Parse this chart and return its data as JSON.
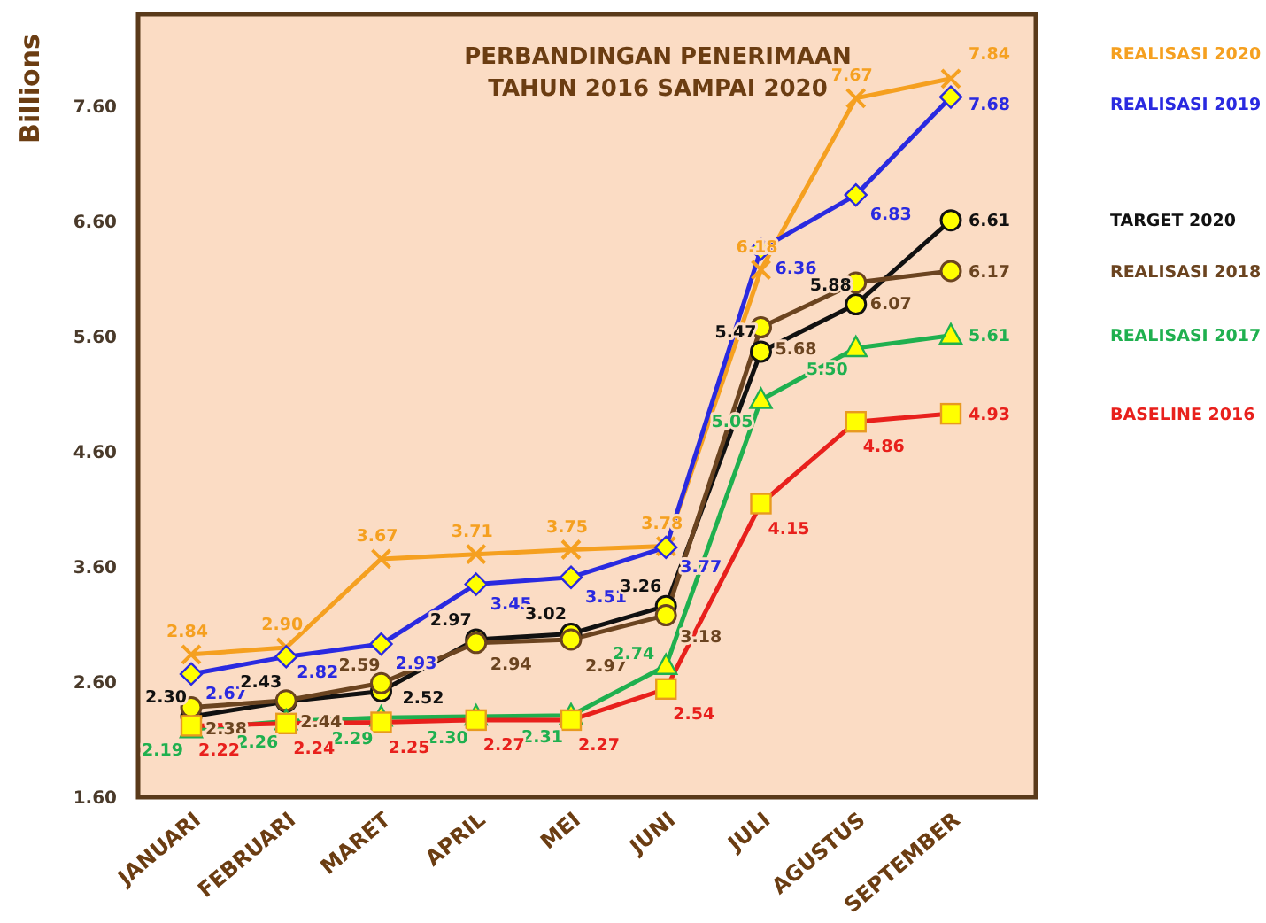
{
  "chart_data": {
    "type": "line",
    "title": "PERBANDINGAN PENERIMAAN\nTAHUN 2016 SAMPAI 2020",
    "ylabel": "Billions",
    "categories": [
      "JANUARI",
      "FEBRUARI",
      "MARET",
      "APRIL",
      "MEI",
      "JUNI",
      "JULI",
      "AGUSTUS",
      "SEPTEMBER"
    ],
    "series": [
      {
        "name": "REALISASI 2020",
        "color": "#f5a020",
        "marker": "cross",
        "values": [
          2.84,
          2.9,
          3.67,
          3.71,
          3.75,
          3.78,
          6.18,
          7.67,
          7.84
        ],
        "value_labels": [
          "2.84",
          "2.90",
          "3.67",
          "3.71",
          "3.75",
          "3.78",
          "6.18",
          "7.67",
          "7.84"
        ]
      },
      {
        "name": "REALISASI 2019",
        "color": "#2a2ae0",
        "marker": "diamond",
        "values": [
          2.67,
          2.82,
          2.93,
          3.45,
          3.51,
          3.77,
          6.36,
          6.83,
          7.68
        ],
        "value_labels": [
          "2.67",
          "2.82",
          "2.93",
          "3.45",
          "3.51",
          "3.77",
          "6.36",
          "6.83",
          "7.68"
        ]
      },
      {
        "name": "TARGET 2020",
        "color": "#111111",
        "marker": "circle",
        "values": [
          2.3,
          2.43,
          2.52,
          2.97,
          3.02,
          3.26,
          5.47,
          5.88,
          6.61
        ],
        "value_labels": [
          "2.30",
          "2.43",
          "2.52",
          "2.97",
          "3.02",
          "3.26",
          "5.47",
          "5.88",
          "6.61"
        ]
      },
      {
        "name": "REALISASI 2018",
        "color": "#6b4420",
        "marker": "circle",
        "values": [
          2.38,
          2.44,
          2.59,
          2.94,
          2.97,
          3.18,
          5.68,
          6.07,
          6.17
        ],
        "value_labels": [
          "2.38",
          "2.44",
          "2.59",
          "2.94",
          "2.97",
          "3.18",
          "5.68",
          "6.07",
          "6.17"
        ]
      },
      {
        "name": "REALISASI 2017",
        "color": "#1fb04f",
        "marker": "triangle",
        "values": [
          2.19,
          2.26,
          2.29,
          2.3,
          2.31,
          2.74,
          5.05,
          5.5,
          5.61
        ],
        "value_labels": [
          "2.19",
          "2.26",
          "2.29",
          "2.30",
          "2.31",
          "2.74",
          "5.05",
          "5.50",
          "5.61"
        ]
      },
      {
        "name": "BASELINE 2016",
        "color": "#e8201c",
        "marker": "square",
        "values": [
          2.22,
          2.24,
          2.25,
          2.27,
          2.27,
          2.54,
          4.15,
          4.86,
          4.93
        ],
        "value_labels": [
          "2.22",
          "2.24",
          "2.25",
          "2.27",
          "2.27",
          "2.54",
          "4.15",
          "4.86",
          "4.93"
        ]
      }
    ],
    "ylim": [
      1.6,
      8.4
    ],
    "yticks": [
      {
        "value": 1.6,
        "label": "1.60"
      },
      {
        "value": 2.6,
        "label": "2.60"
      },
      {
        "value": 3.6,
        "label": "3.60"
      },
      {
        "value": 4.6,
        "label": "4.60"
      },
      {
        "value": 5.6,
        "label": "5.60"
      },
      {
        "value": 6.6,
        "label": "6.60"
      },
      {
        "value": 7.6,
        "label": "7.60"
      }
    ],
    "grid": false,
    "data_labels": true,
    "line_style": "solid"
  }
}
